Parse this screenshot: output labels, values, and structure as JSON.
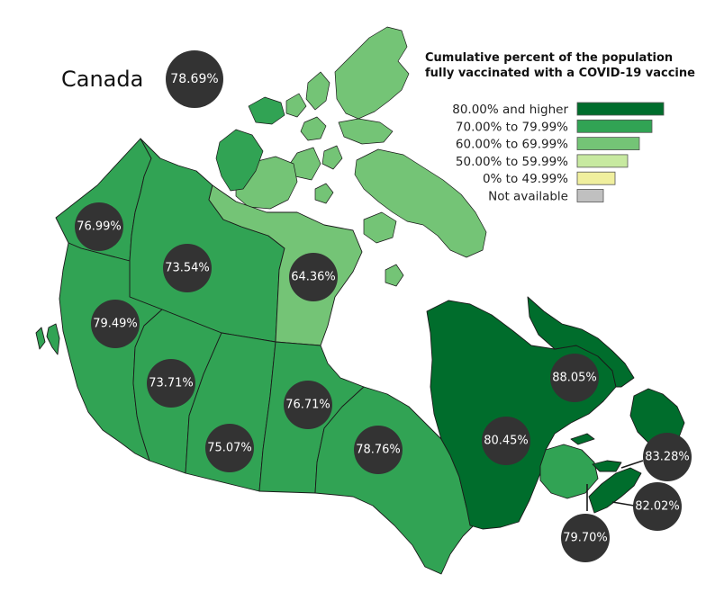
{
  "map": {
    "country": "Canada",
    "national_value": "78.69%",
    "legend": {
      "title_line1": "Cumulative percent of the population",
      "title_line2": "fully vaccinated with a COVID-19 vaccine",
      "bins": [
        {
          "label": "80.00% and higher",
          "color": "#006d2c",
          "level": 1.0
        },
        {
          "label": "70.00% to 79.99%",
          "color": "#31a354",
          "level": 0.86
        },
        {
          "label": "60.00% to 69.99%",
          "color": "#74c476",
          "level": 0.72
        },
        {
          "label": "50.00% to 59.99%",
          "color": "#c7e9a0",
          "level": 0.58
        },
        {
          "label": "0% to 49.99%",
          "color": "#f0ef9e",
          "level": 0.44
        },
        {
          "label": "Not available",
          "color": "#c0c0c0",
          "level": 0.3
        }
      ]
    },
    "regions": [
      {
        "id": "yukon",
        "value": "76.99%",
        "color": "#31a354"
      },
      {
        "id": "northwest-territories",
        "value": "73.54%",
        "color": "#31a354"
      },
      {
        "id": "nunavut",
        "value": "64.36%",
        "color": "#74c476"
      },
      {
        "id": "british-columbia",
        "value": "79.49%",
        "color": "#31a354"
      },
      {
        "id": "alberta",
        "value": "73.71%",
        "color": "#31a354"
      },
      {
        "id": "saskatchewan",
        "value": "75.07%",
        "color": "#31a354"
      },
      {
        "id": "manitoba",
        "value": "76.71%",
        "color": "#31a354"
      },
      {
        "id": "ontario",
        "value": "78.76%",
        "color": "#31a354"
      },
      {
        "id": "quebec",
        "value": "80.45%",
        "color": "#006d2c"
      },
      {
        "id": "newfoundland-and-labrador",
        "value": "88.05%",
        "color": "#006d2c"
      },
      {
        "id": "prince-edward-island",
        "value": "83.28%",
        "color": "#006d2c"
      },
      {
        "id": "nova-scotia",
        "value": "82.02%",
        "color": "#006d2c"
      },
      {
        "id": "new-brunswick",
        "value": "79.70%",
        "color": "#31a354"
      }
    ]
  }
}
